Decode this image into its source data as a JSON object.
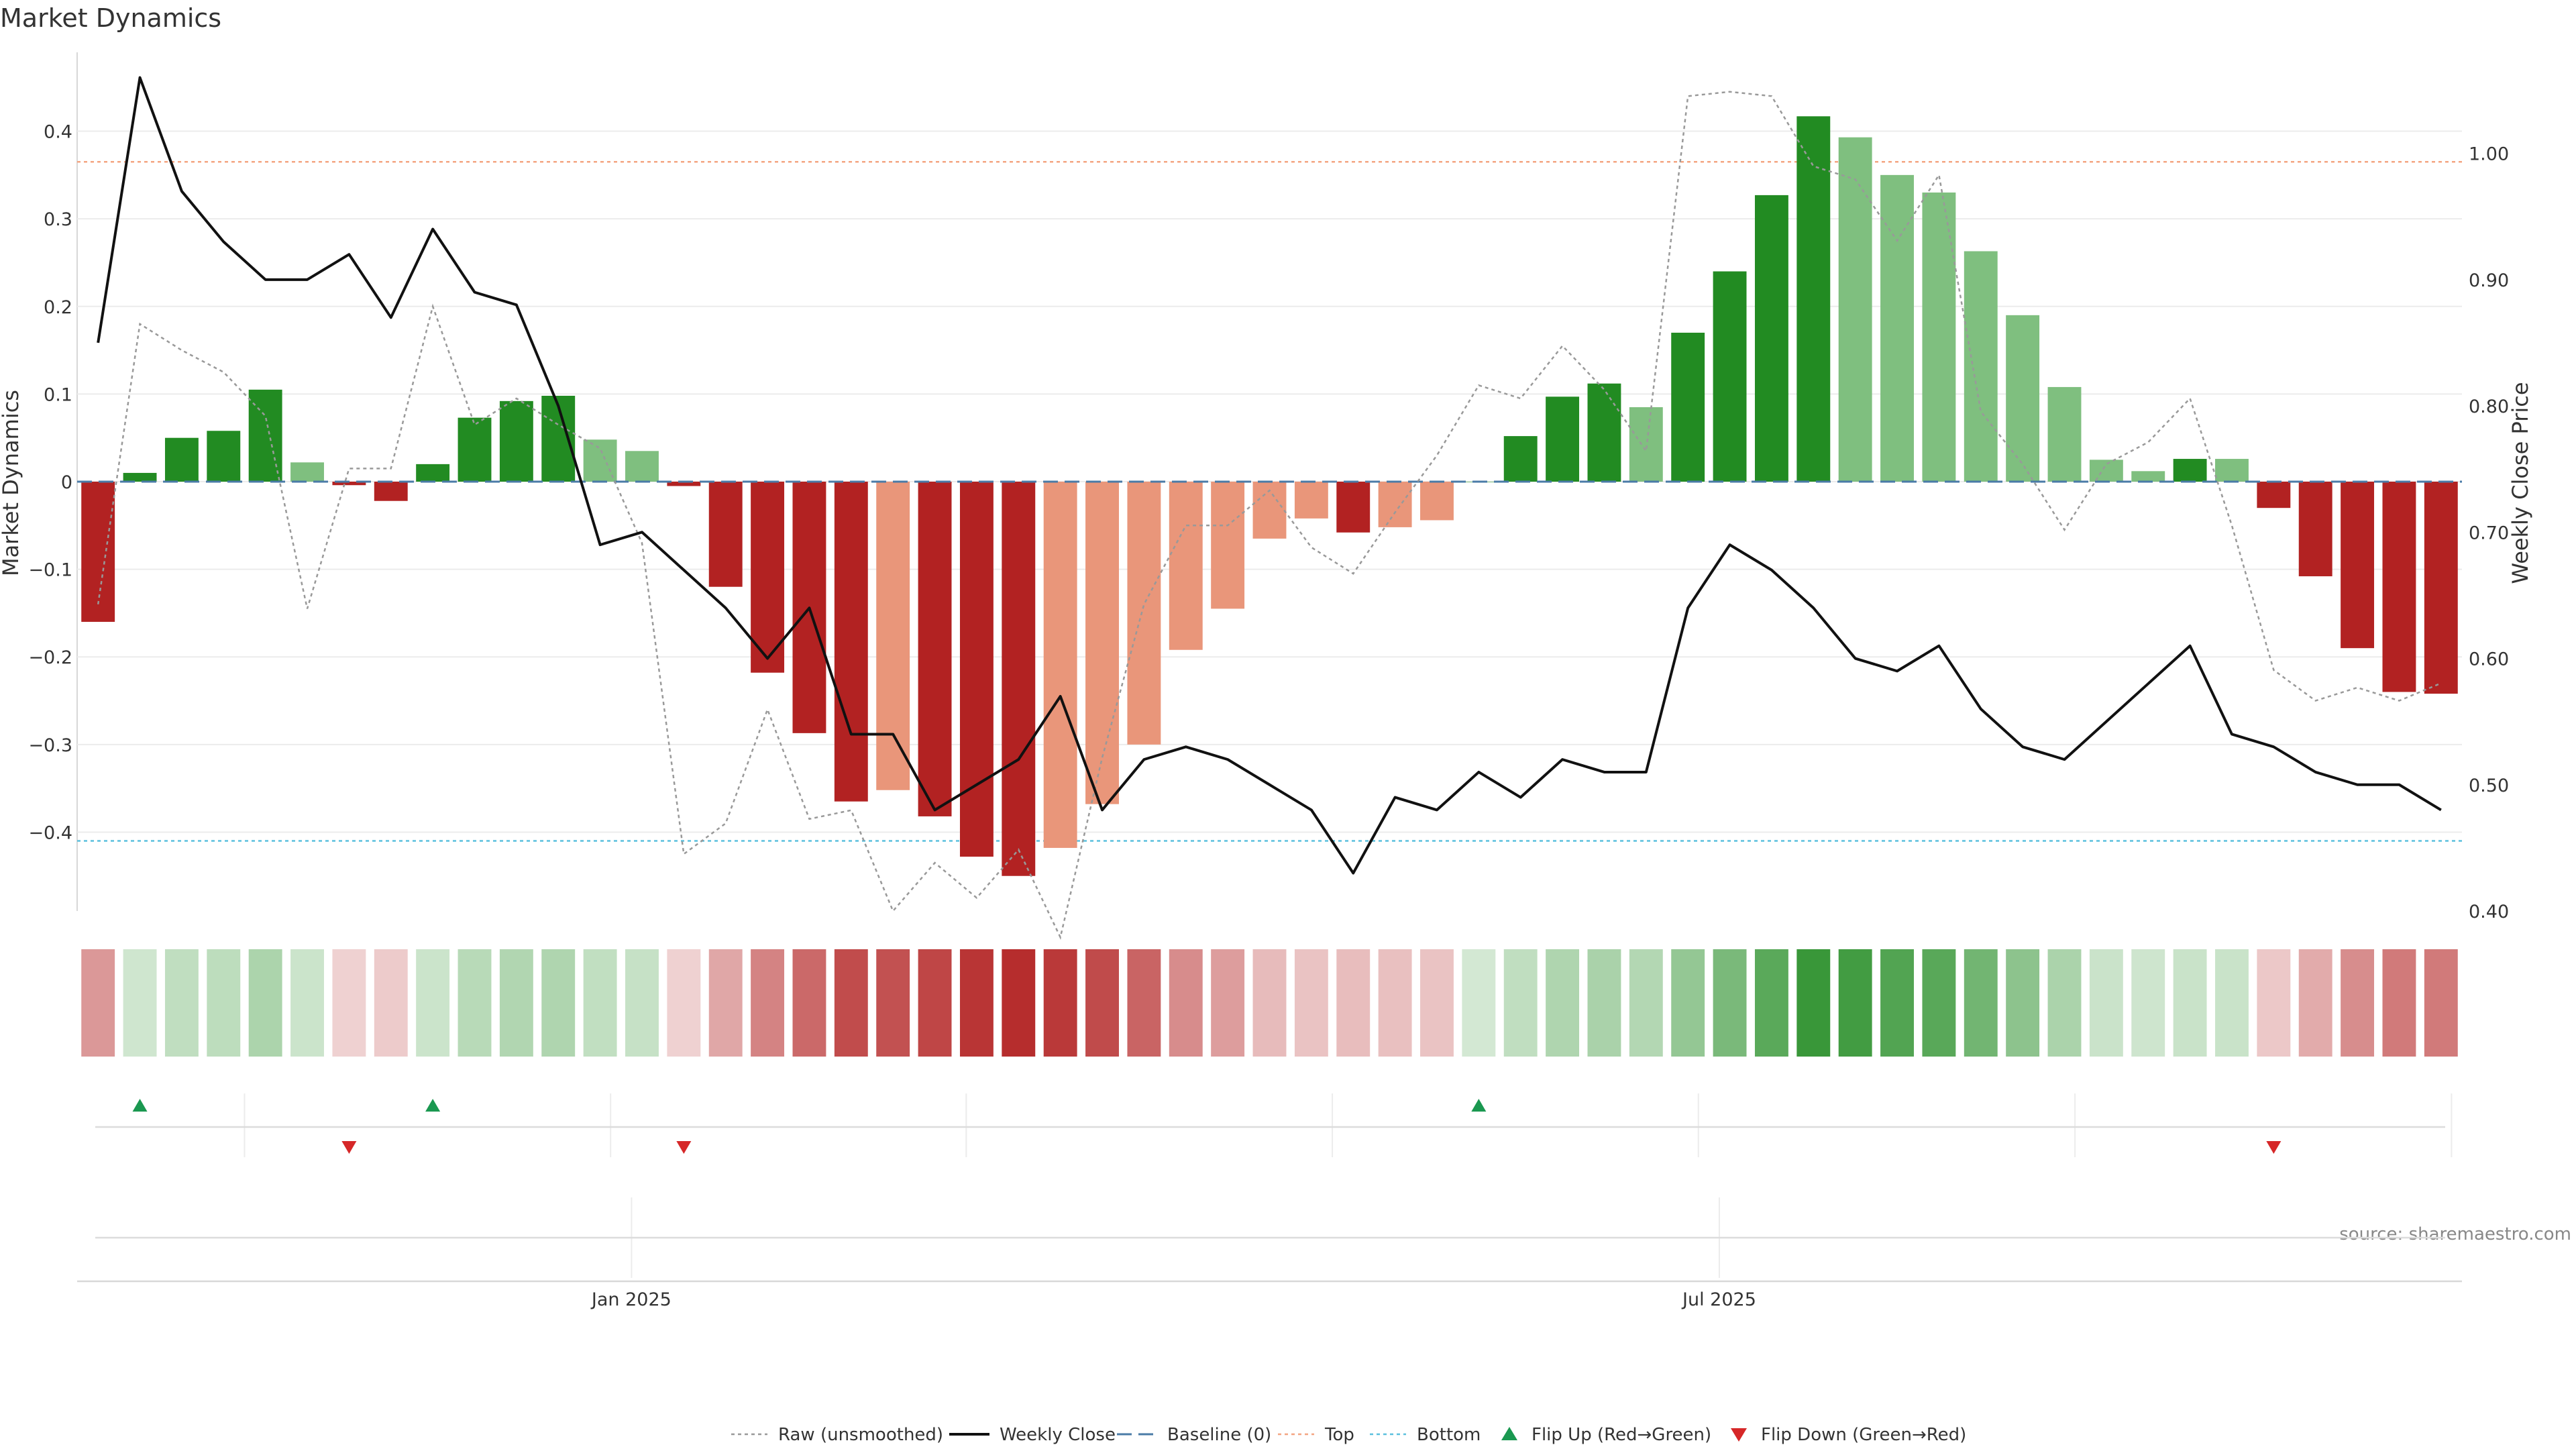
{
  "chart_data": {
    "type": "bar",
    "title": "Market Dynamics",
    "ylabel": "Market Dynamics",
    "y2label": "Weekly Close Price",
    "ylim": [
      -0.49,
      0.49
    ],
    "y2lim": [
      0.4,
      1.08
    ],
    "yticks": [
      -0.4,
      -0.3,
      -0.2,
      -0.1,
      0,
      0.1,
      0.2,
      0.3,
      0.4
    ],
    "yticklabels": [
      "−0.4",
      "−0.3",
      "−0.2",
      "−0.1",
      "0",
      "0.1",
      "0.2",
      "0.3",
      "0.4"
    ],
    "y2ticks": [
      0.4,
      0.5,
      0.6,
      0.7,
      0.8,
      0.9,
      1.0
    ],
    "y2ticklabels": [
      "0.40",
      "0.50",
      "0.60",
      "0.70",
      "0.80",
      "0.90",
      "1.00"
    ],
    "x_labels": [
      {
        "index": 12.75,
        "label": "Jan 2025"
      },
      {
        "index": 38.75,
        "label": "Jul 2025"
      }
    ],
    "top_line": 0.365,
    "bottom_line": -0.41,
    "baseline": 0,
    "grid": true,
    "legend_position": "bottom-center",
    "source": "source: sharemaestro.com",
    "colors": {
      "strong_green": "#228b22",
      "light_green": "#7fbf7f",
      "strong_red": "#b22222",
      "light_red": "#e9967a",
      "weekly_close": "#111111",
      "raw": "#999999",
      "baseline": "#4a7ba7",
      "top": "#f4a582",
      "bottom": "#5bc0de",
      "flip_up": "#1a9850",
      "flip_down": "#d62728"
    },
    "bars": {
      "name": "Market Dynamics",
      "values": [
        -0.16,
        0.01,
        0.05,
        0.058,
        0.105,
        0.022,
        -0.004,
        -0.022,
        0.02,
        0.073,
        0.092,
        0.098,
        0.048,
        0.035,
        -0.005,
        -0.12,
        -0.218,
        -0.287,
        -0.365,
        -0.352,
        -0.382,
        -0.428,
        -0.45,
        -0.418,
        -0.368,
        -0.3,
        -0.192,
        -0.145,
        -0.065,
        -0.042,
        -0.058,
        -0.052,
        -0.044,
        0,
        0.052,
        0.097,
        0.112,
        0.085,
        0.17,
        0.24,
        0.327,
        0.417,
        0.393,
        0.35,
        0.33,
        0.263,
        0.19,
        0.108,
        0.025,
        0.012,
        0.026,
        0.026,
        -0.03,
        -0.108,
        -0.19,
        -0.24,
        -0.242
      ],
      "tones": [
        "strong",
        "strong",
        "strong",
        "strong",
        "strong",
        "light",
        "strong",
        "strong",
        "strong",
        "strong",
        "strong",
        "strong",
        "light",
        "light",
        "strong",
        "strong",
        "strong",
        "strong",
        "strong",
        "light",
        "strong",
        "strong",
        "strong",
        "light",
        "light",
        "light",
        "light",
        "light",
        "light",
        "light",
        "strong",
        "light",
        "light",
        "light",
        "strong",
        "strong",
        "strong",
        "light",
        "strong",
        "strong",
        "strong",
        "strong",
        "light",
        "light",
        "light",
        "light",
        "light",
        "light",
        "light",
        "light",
        "strong",
        "light",
        "strong",
        "strong",
        "strong",
        "strong",
        "strong"
      ]
    },
    "series": [
      {
        "name": "Weekly Close",
        "axis": "right",
        "values": [
          0.85,
          1.06,
          0.97,
          0.93,
          0.9,
          0.9,
          0.92,
          0.87,
          0.94,
          0.89,
          0.88,
          0.8,
          0.69,
          0.7,
          0.67,
          0.64,
          0.6,
          0.64,
          0.54,
          0.54,
          0.48,
          0.5,
          0.52,
          0.57,
          0.48,
          0.52,
          0.53,
          0.52,
          0.5,
          0.48,
          0.43,
          0.49,
          0.48,
          0.51,
          0.49,
          0.52,
          0.51,
          0.51,
          0.64,
          0.69,
          0.67,
          0.64,
          0.6,
          0.59,
          0.61,
          0.56,
          0.53,
          0.52,
          0.55,
          0.58,
          0.61,
          0.54,
          0.53,
          0.51,
          0.5,
          0.5,
          0.48
        ]
      },
      {
        "name": "Raw (unsmoothed)",
        "axis": "left",
        "values": [
          -0.14,
          0.18,
          0.15,
          0.125,
          0.075,
          -0.145,
          0.015,
          0.015,
          0.2,
          0.065,
          0.095,
          0.065,
          0.038,
          -0.07,
          -0.425,
          -0.39,
          -0.26,
          -0.385,
          -0.375,
          -0.49,
          -0.435,
          -0.475,
          -0.42,
          -0.52,
          -0.315,
          -0.14,
          -0.05,
          -0.05,
          -0.01,
          -0.075,
          -0.105,
          -0.035,
          0.03,
          0.11,
          0.095,
          0.155,
          0.105,
          0.035,
          0.44,
          0.445,
          0.44,
          0.36,
          0.345,
          0.275,
          0.35,
          0.08,
          0.02,
          -0.055,
          0.02,
          0.045,
          0.095,
          -0.05,
          -0.215,
          -0.25,
          -0.235,
          -0.25,
          -0.23
        ]
      }
    ],
    "flips": {
      "up_indices": [
        1,
        8,
        33
      ],
      "down_indices": [
        6,
        14,
        52
      ]
    },
    "legend": [
      {
        "key": "raw",
        "label": "Raw (unsmoothed)"
      },
      {
        "key": "weekly_close",
        "label": "Weekly Close"
      },
      {
        "key": "baseline",
        "label": "Baseline (0)"
      },
      {
        "key": "top",
        "label": "Top"
      },
      {
        "key": "bottom",
        "label": "Bottom"
      },
      {
        "key": "flip_up",
        "label": "Flip Up (Red→Green)"
      },
      {
        "key": "flip_down",
        "label": "Flip Down (Green→Red)"
      }
    ]
  }
}
